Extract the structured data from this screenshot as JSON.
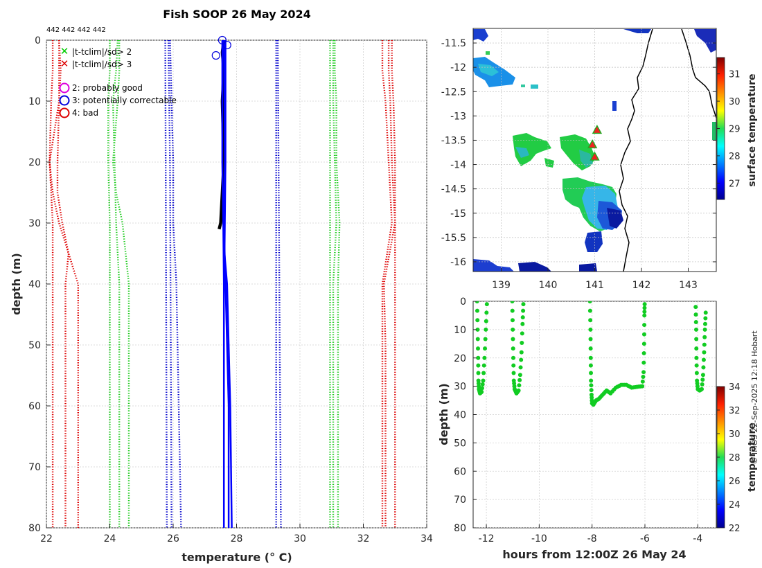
{
  "chart_data": [
    {
      "type": "line",
      "title": "Fish SOOP 26 May 2024",
      "xlabel": "temperature (° C)",
      "ylabel": "depth (m)",
      "xlim": [
        22,
        34
      ],
      "ylim": [
        0,
        80
      ],
      "x_ticks": [
        "22",
        "24",
        "26",
        "28",
        "30",
        "32",
        "34"
      ],
      "y_ticks": [
        "0",
        "10",
        "20",
        "30",
        "40",
        "50",
        "60",
        "70",
        "80"
      ],
      "top_annotation": "442 442 442 442",
      "legend": [
        {
          "symbol": "x",
          "color": "#00cc00",
          "label": "|t-tclim|/sd> 2"
        },
        {
          "symbol": "x",
          "color": "#dd0000",
          "label": "|t-tclim|/sd> 3"
        },
        {
          "symbol": "circle",
          "color": "#dd00dd",
          "label": "2: probably good"
        },
        {
          "symbol": "circle",
          "color": "#0000dd",
          "label": "3: potentially correctable"
        },
        {
          "symbol": "circle",
          "color": "#dd0000",
          "label": "4: bad"
        }
      ],
      "climatology_lines": [
        {
          "name": "red-outer-left",
          "color": "#dd0000",
          "depths": [
            0,
            5,
            10,
            20,
            30,
            40,
            50,
            60,
            70,
            80
          ],
          "temps": [
            22.2,
            22.2,
            22.15,
            22.1,
            22.2,
            22.2,
            22.2,
            22.2,
            22.2,
            22.2
          ]
        },
        {
          "name": "red-mid-left",
          "color": "#dd0000",
          "depths": [
            0,
            5,
            10,
            20,
            25,
            30,
            35,
            40,
            50,
            80
          ],
          "temps": [
            22.4,
            22.4,
            22.4,
            22.35,
            22.35,
            22.5,
            22.7,
            22.6,
            22.6,
            22.6
          ]
        },
        {
          "name": "red-inner-left",
          "color": "#dd0000",
          "depths": [
            0,
            5,
            10,
            20,
            25,
            30,
            35,
            40,
            50,
            80
          ],
          "temps": [
            22.4,
            22.45,
            22.4,
            22.1,
            22.2,
            22.4,
            22.7,
            23.0,
            23.0,
            23.0
          ]
        },
        {
          "name": "green-left-1",
          "color": "#22cc22",
          "depths": [
            0,
            5,
            10,
            20,
            30,
            40,
            50,
            80
          ],
          "temps": [
            24.0,
            24.0,
            23.95,
            23.95,
            24.0,
            24.0,
            24.0,
            24.0
          ]
        },
        {
          "name": "green-left-2",
          "color": "#22cc22",
          "depths": [
            0,
            5,
            10,
            20,
            30,
            40,
            50,
            80
          ],
          "temps": [
            24.25,
            24.2,
            24.1,
            24.15,
            24.2,
            24.3,
            24.3,
            24.3
          ]
        },
        {
          "name": "green-left-3",
          "color": "#22cc22",
          "depths": [
            0,
            5,
            10,
            20,
            25,
            30,
            40,
            50,
            80
          ],
          "temps": [
            24.3,
            24.3,
            24.25,
            24.1,
            24.2,
            24.4,
            24.6,
            24.6,
            24.6
          ]
        },
        {
          "name": "blue-left-1",
          "color": "#0000cc",
          "depths": [
            0,
            80
          ],
          "temps": [
            25.75,
            25.8
          ]
        },
        {
          "name": "blue-left-2",
          "color": "#0000cc",
          "depths": [
            0,
            20,
            80
          ],
          "temps": [
            25.85,
            25.9,
            25.95
          ]
        },
        {
          "name": "blue-left-3",
          "color": "#0000cc",
          "depths": [
            0,
            20,
            30,
            40,
            80
          ],
          "temps": [
            25.9,
            26.0,
            26.0,
            26.1,
            26.25
          ]
        },
        {
          "name": "blue-right-1",
          "color": "#0000cc",
          "depths": [
            0,
            80
          ],
          "temps": [
            29.25,
            29.25
          ]
        },
        {
          "name": "blue-right-2",
          "color": "#0000cc",
          "depths": [
            0,
            80
          ],
          "temps": [
            29.3,
            29.4
          ]
        },
        {
          "name": "green-right-1",
          "color": "#22cc22",
          "depths": [
            0,
            5,
            10,
            20,
            30,
            40,
            80
          ],
          "temps": [
            30.95,
            30.95,
            30.95,
            30.95,
            30.95,
            30.95,
            30.95
          ]
        },
        {
          "name": "green-right-2",
          "color": "#22cc22",
          "depths": [
            0,
            5,
            10,
            20,
            30,
            40,
            80
          ],
          "temps": [
            31.05,
            31.05,
            31.05,
            31.1,
            31.15,
            31.05,
            31.05
          ]
        },
        {
          "name": "green-right-3",
          "color": "#22cc22",
          "depths": [
            0,
            5,
            10,
            20,
            30,
            40,
            80
          ],
          "temps": [
            31.1,
            31.1,
            31.15,
            31.15,
            31.25,
            31.2,
            31.2
          ]
        },
        {
          "name": "red-right-1",
          "color": "#dd0000",
          "depths": [
            0,
            5,
            10,
            20,
            30,
            40,
            50,
            80
          ],
          "temps": [
            32.6,
            32.6,
            32.7,
            32.8,
            32.9,
            32.6,
            32.6,
            32.6
          ]
        },
        {
          "name": "red-right-2",
          "color": "#dd0000",
          "depths": [
            0,
            5,
            10,
            20,
            30,
            40,
            50,
            80
          ],
          "temps": [
            32.8,
            32.8,
            32.85,
            32.9,
            33.0,
            32.65,
            32.7,
            32.7
          ]
        },
        {
          "name": "red-right-3",
          "color": "#dd0000",
          "depths": [
            0,
            5,
            10,
            20,
            30,
            40,
            50,
            80
          ],
          "temps": [
            32.9,
            32.9,
            32.95,
            33.0,
            33.0,
            33.0,
            33.0,
            33.0
          ]
        }
      ],
      "observed_profiles": [
        {
          "name": "black-cast-bundle",
          "color": "#000000",
          "depths": [
            0,
            2,
            5,
            10,
            20,
            25,
            30,
            31
          ],
          "temps": [
            27.6,
            27.55,
            27.6,
            27.55,
            27.6,
            27.55,
            27.5,
            27.45
          ]
        },
        {
          "name": "blue-cast-a",
          "color": "#0000ff",
          "depths": [
            0,
            10,
            20,
            30,
            40,
            50,
            60,
            80
          ],
          "temps": [
            27.6,
            27.62,
            27.63,
            27.6,
            27.65,
            27.7,
            27.75,
            27.75
          ]
        },
        {
          "name": "blue-cast-b",
          "color": "#0000ff",
          "depths": [
            0,
            20,
            30,
            40,
            80
          ],
          "temps": [
            27.55,
            27.55,
            27.58,
            27.6,
            27.6
          ]
        },
        {
          "name": "blue-cast-c",
          "color": "#0000ff",
          "depths": [
            0,
            20,
            35,
            40,
            60,
            80
          ],
          "temps": [
            27.65,
            27.65,
            27.62,
            27.7,
            27.8,
            27.85
          ]
        }
      ],
      "flagged_points": [
        {
          "temp": 27.55,
          "depth": 0,
          "flag": "3"
        },
        {
          "temp": 27.7,
          "depth": 0.8,
          "flag": "3"
        },
        {
          "temp": 27.35,
          "depth": 2.5,
          "flag": "3"
        }
      ]
    },
    {
      "type": "heatmap",
      "title": "",
      "xlim": [
        138.4,
        143.6
      ],
      "ylim": [
        -16.2,
        -11.2
      ],
      "x_ticks": [
        "139",
        "140",
        "141",
        "142",
        "143"
      ],
      "y_ticks": [
        "-11.5",
        "-12",
        "-12.5",
        "-13",
        "-13.5",
        "-14",
        "-14.5",
        "-15",
        "-15.5",
        "-16"
      ],
      "colorbar_label": "surface temperature",
      "colorbar_ticks": [
        "27",
        "28",
        "29",
        "30",
        "31"
      ],
      "colorbar_range": [
        26.4,
        31.6
      ],
      "profile_locations": [
        {
          "lon": 141.05,
          "lat": -13.3
        },
        {
          "lon": 140.95,
          "lat": -13.6
        },
        {
          "lon": 141.0,
          "lat": -13.85
        }
      ]
    },
    {
      "type": "scatter",
      "xlabel": "hours from 12:00Z 26 May 24",
      "ylabel": "depth (m)",
      "xlim": [
        -12.5,
        -3.3
      ],
      "ylim": [
        0,
        80
      ],
      "x_ticks": [
        "-12",
        "-10",
        "-8",
        "-6",
        "-4"
      ],
      "y_ticks": [
        "0",
        "10",
        "20",
        "30",
        "40",
        "50",
        "60",
        "70",
        "80"
      ],
      "colorbar_label": "temperature",
      "colorbar_ticks": [
        "22",
        "24",
        "26",
        "28",
        "30",
        "32",
        "34"
      ],
      "colorbar_range": [
        22,
        34
      ],
      "track": [
        {
          "t": -12.35,
          "d": 0
        },
        {
          "t": -12.33,
          "d": 10
        },
        {
          "t": -12.31,
          "d": 20
        },
        {
          "t": -12.3,
          "d": 28
        },
        {
          "t": -12.28,
          "d": 31
        },
        {
          "t": -12.24,
          "d": 32.5
        },
        {
          "t": -12.18,
          "d": 32
        },
        {
          "t": -12.12,
          "d": 28
        },
        {
          "t": -12.07,
          "d": 20
        },
        {
          "t": -12.02,
          "d": 10
        },
        {
          "t": -11.98,
          "d": 1
        },
        {
          "t": -11.02,
          "d": 0
        },
        {
          "t": -11.0,
          "d": 10
        },
        {
          "t": -10.98,
          "d": 20
        },
        {
          "t": -10.96,
          "d": 28
        },
        {
          "t": -10.93,
          "d": 31
        },
        {
          "t": -10.86,
          "d": 32.5
        },
        {
          "t": -10.78,
          "d": 31.5
        },
        {
          "t": -10.72,
          "d": 26
        },
        {
          "t": -10.67,
          "d": 18
        },
        {
          "t": -10.63,
          "d": 8
        },
        {
          "t": -10.6,
          "d": 1
        },
        {
          "t": -8.08,
          "d": 0
        },
        {
          "t": -8.06,
          "d": 10
        },
        {
          "t": -8.05,
          "d": 20
        },
        {
          "t": -8.04,
          "d": 28
        },
        {
          "t": -8.02,
          "d": 33
        },
        {
          "t": -8.0,
          "d": 36
        },
        {
          "t": -7.95,
          "d": 36.5
        },
        {
          "t": -7.85,
          "d": 35
        },
        {
          "t": -7.75,
          "d": 34.5
        },
        {
          "t": -7.6,
          "d": 33
        },
        {
          "t": -7.45,
          "d": 31.5
        },
        {
          "t": -7.3,
          "d": 32.5
        },
        {
          "t": -7.1,
          "d": 30.5
        },
        {
          "t": -6.9,
          "d": 29.5
        },
        {
          "t": -6.7,
          "d": 29.5
        },
        {
          "t": -6.5,
          "d": 30.5
        },
        {
          "t": -6.3,
          "d": 30.2
        },
        {
          "t": -6.1,
          "d": 30
        },
        {
          "t": -6.05,
          "d": 25
        },
        {
          "t": -6.03,
          "d": 15
        },
        {
          "t": -6.02,
          "d": 5
        },
        {
          "t": -6.01,
          "d": 1
        },
        {
          "t": -4.08,
          "d": 2
        },
        {
          "t": -4.06,
          "d": 10
        },
        {
          "t": -4.05,
          "d": 20
        },
        {
          "t": -4.03,
          "d": 28
        },
        {
          "t": -4.0,
          "d": 31
        },
        {
          "t": -3.93,
          "d": 31.5
        },
        {
          "t": -3.85,
          "d": 31
        },
        {
          "t": -3.8,
          "d": 26
        },
        {
          "t": -3.76,
          "d": 18
        },
        {
          "t": -3.73,
          "d": 10
        },
        {
          "t": -3.7,
          "d": 4
        }
      ],
      "point_color": "#11cc22"
    }
  ],
  "copyright": "© IMOS 22-Sep-2025 12:18 Hobart"
}
